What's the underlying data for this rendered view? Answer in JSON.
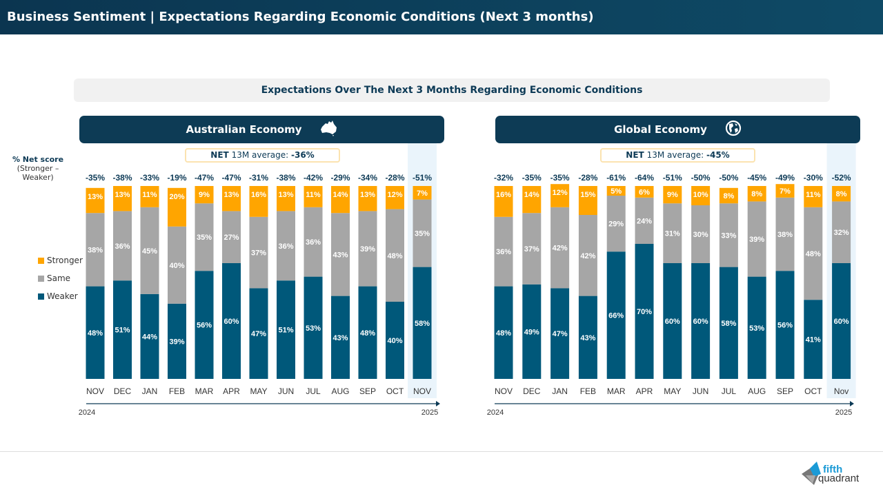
{
  "header": {
    "title": "Business Sentiment | Expectations Regarding Economic Conditions (Next 3 months)"
  },
  "subtitle": "Expectations Over The Next 3 Months Regarding Economic Conditions",
  "y_label": {
    "title": "% Net score",
    "sub": "(Stronger – Weaker)"
  },
  "legend": [
    "Stronger",
    "Same",
    "Weaker"
  ],
  "colors": {
    "weaker": "#00587a",
    "same": "#a6a6a6",
    "stronger": "#ffa500",
    "highlight": "#eaf4fb"
  },
  "logo": {
    "text1": "fifth",
    "text2": "quadrant"
  },
  "chart_data": [
    {
      "type": "bar",
      "stacked": true,
      "title": "Australian Economy",
      "icon": "australia-icon",
      "net_label": "NET",
      "net_text": "13M average:",
      "net_avg": "-36%",
      "categories": [
        "NOV",
        "DEC",
        "JAN",
        "FEB",
        "MAR",
        "APR",
        "MAY",
        "JUN",
        "JUL",
        "AUG",
        "SEP",
        "OCT",
        "NOV"
      ],
      "year_start": "2024",
      "year_end": "2025",
      "net": [
        "-35%",
        "-38%",
        "-33%",
        "-19%",
        "-47%",
        "-47%",
        "-31%",
        "-38%",
        "-42%",
        "-29%",
        "-34%",
        "-28%",
        "-51%"
      ],
      "series": [
        {
          "name": "Weaker",
          "values": [
            48,
            51,
            44,
            39,
            56,
            60,
            47,
            51,
            53,
            43,
            48,
            40,
            58
          ]
        },
        {
          "name": "Same",
          "values": [
            38,
            36,
            45,
            40,
            35,
            27,
            37,
            36,
            36,
            43,
            39,
            48,
            35
          ]
        },
        {
          "name": "Stronger",
          "values": [
            13,
            13,
            11,
            20,
            9,
            13,
            16,
            13,
            11,
            14,
            13,
            12,
            7
          ]
        }
      ]
    },
    {
      "type": "bar",
      "stacked": true,
      "title": "Global Economy",
      "icon": "globe-icon",
      "net_label": "NET",
      "net_text": "13M average:",
      "net_avg": "-45%",
      "categories": [
        "NOV",
        "DEC",
        "JAN",
        "FEB",
        "MAR",
        "APR",
        "MAY",
        "JUN",
        "JUL",
        "AUG",
        "SEP",
        "OCT",
        "Nov"
      ],
      "year_start": "2024",
      "year_end": "2025",
      "net": [
        "-32%",
        "-35%",
        "-35%",
        "-28%",
        "-61%",
        "-64%",
        "-51%",
        "-50%",
        "-50%",
        "-45%",
        "-49%",
        "-30%",
        "-52%"
      ],
      "series": [
        {
          "name": "Weaker",
          "values": [
            48,
            49,
            47,
            43,
            66,
            70,
            60,
            60,
            58,
            53,
            56,
            41,
            60
          ]
        },
        {
          "name": "Same",
          "values": [
            36,
            37,
            42,
            42,
            29,
            24,
            31,
            30,
            33,
            39,
            38,
            48,
            32
          ]
        },
        {
          "name": "Stronger",
          "values": [
            16,
            14,
            12,
            15,
            5,
            6,
            9,
            10,
            8,
            8,
            7,
            11,
            8
          ]
        }
      ]
    }
  ]
}
